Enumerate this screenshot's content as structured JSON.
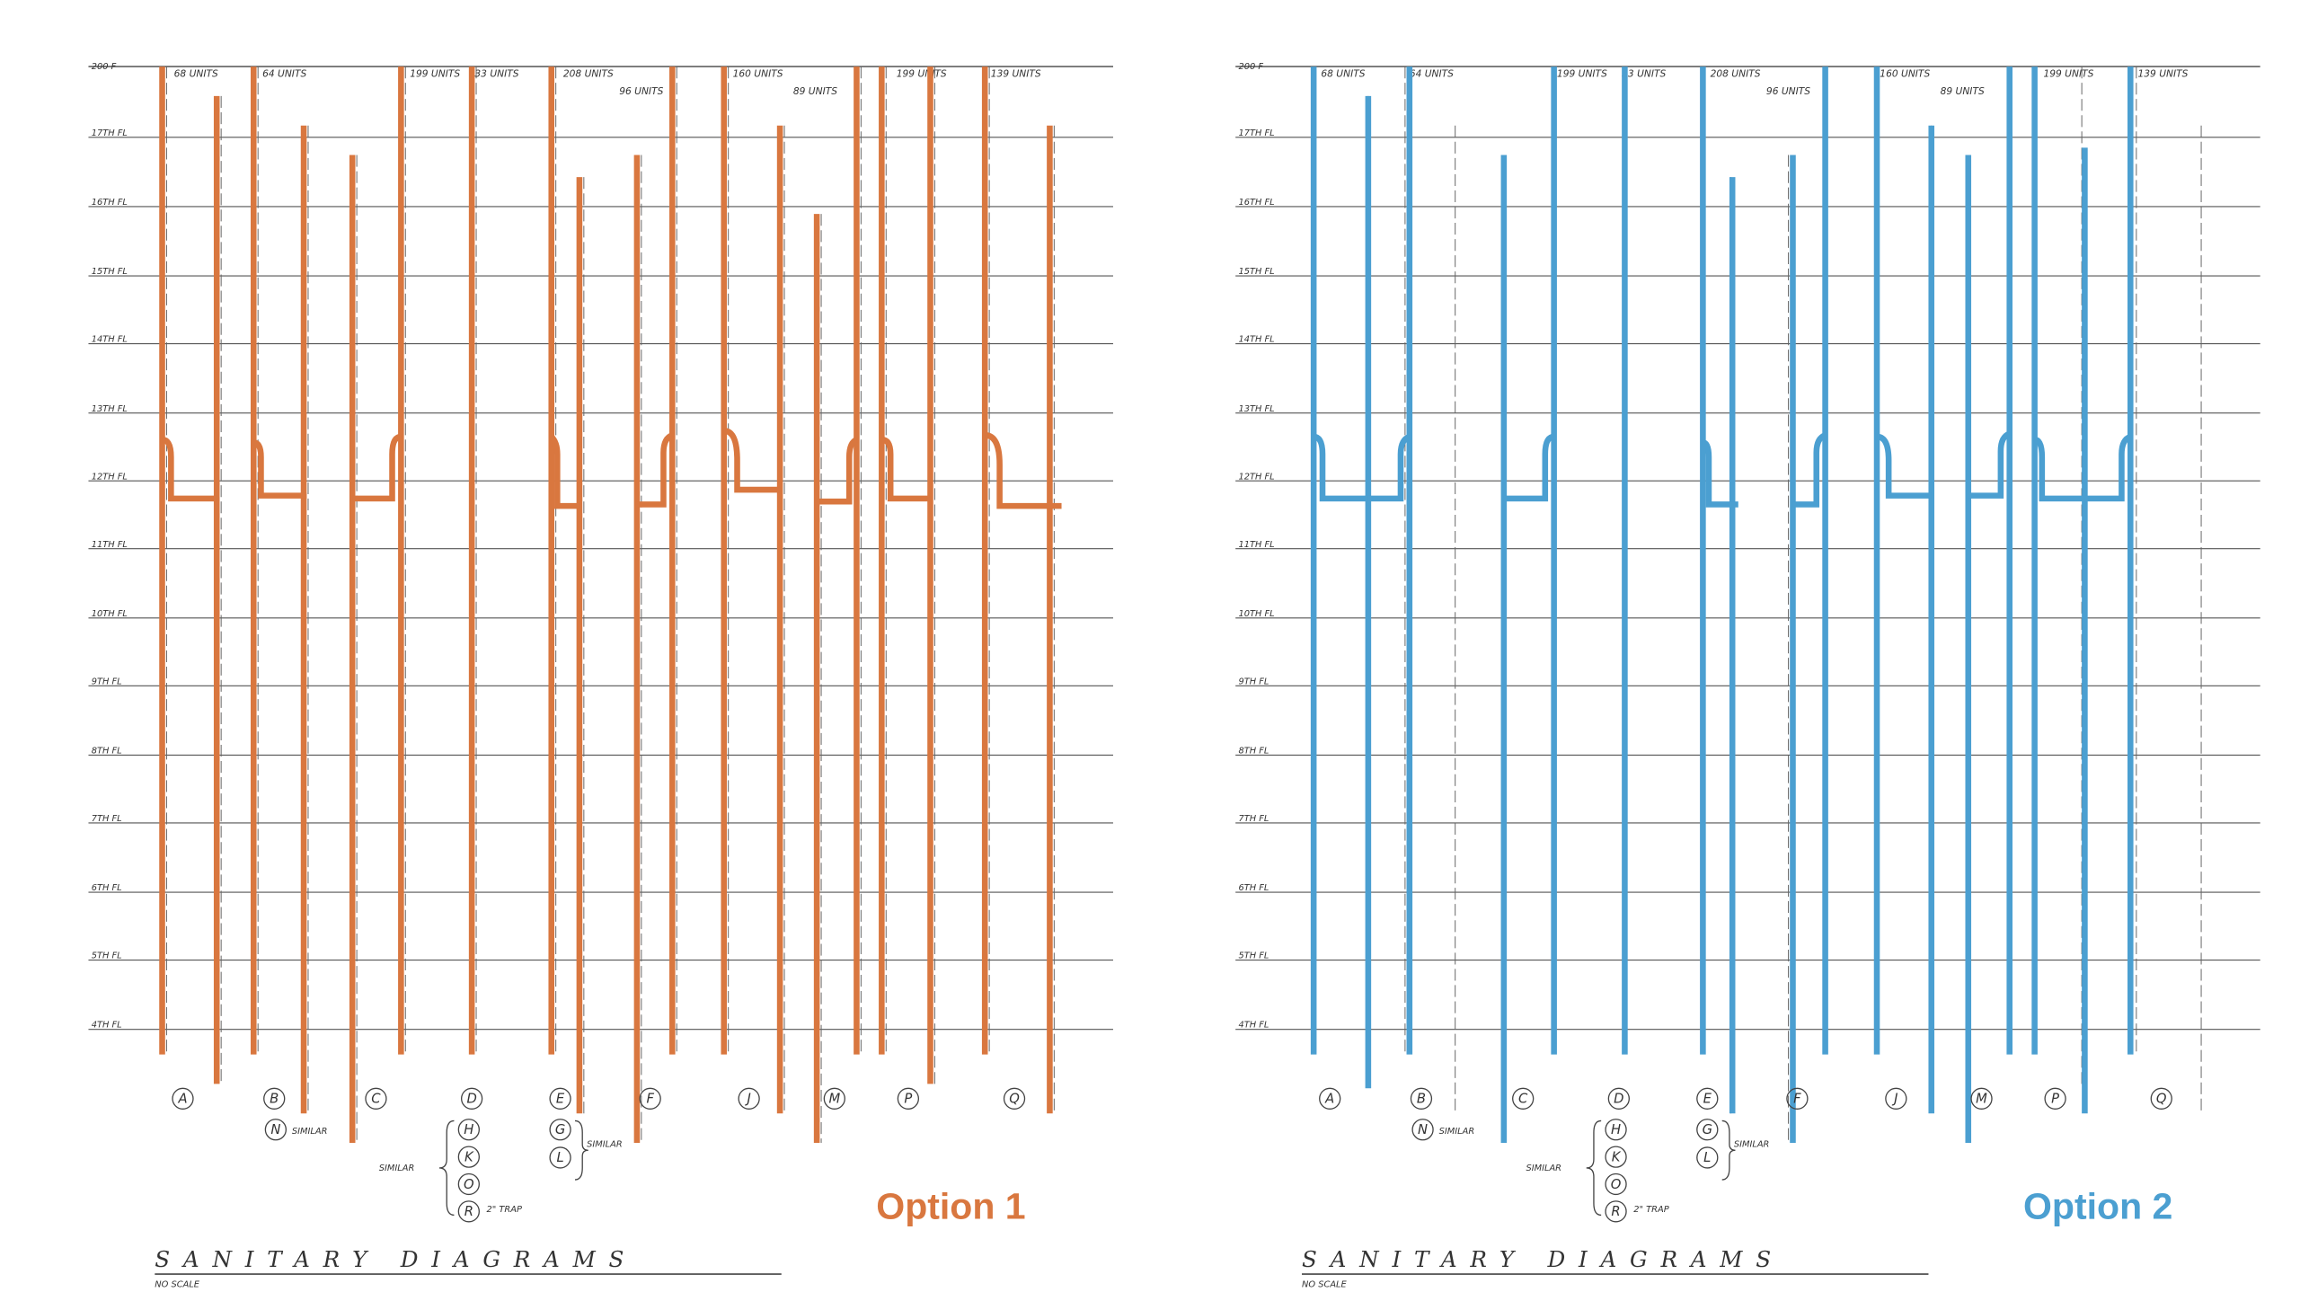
{
  "panels": [
    {
      "option": "Option 1",
      "color": "#d9773f"
    },
    {
      "option": "Option 2",
      "color": "#4b9fd1"
    }
  ],
  "roof": "200 F",
  "floors": [
    "17TH FL",
    "16TH FL",
    "15TH FL",
    "14TH FL",
    "13TH FL",
    "12TH FL",
    "11TH FL",
    "10TH FL",
    "9TH FL",
    "8TH FL",
    "7TH FL",
    "6TH FL",
    "5TH FL",
    "4TH FL"
  ],
  "units": [
    "68 UNITS",
    "64 UNITS",
    "199 UNITS",
    "33 UNITS",
    "208 UNITS",
    "96 UNITS",
    "160 UNITS",
    "89 UNITS",
    "199 UNITS",
    "139 UNITS"
  ],
  "stacks": [
    "A",
    "B",
    "C",
    "D",
    "E",
    "F",
    "J",
    "M",
    "P",
    "Q"
  ],
  "stack_similar_b": "N",
  "stack_similar_d": [
    "H",
    "K",
    "O",
    "R"
  ],
  "stack_similar_e": [
    "G",
    "L"
  ],
  "similar": "SIMILAR",
  "trap_note": "2\" TRAP",
  "title": "SANITARY DIAGRAMS",
  "subtitle": "NO SCALE"
}
